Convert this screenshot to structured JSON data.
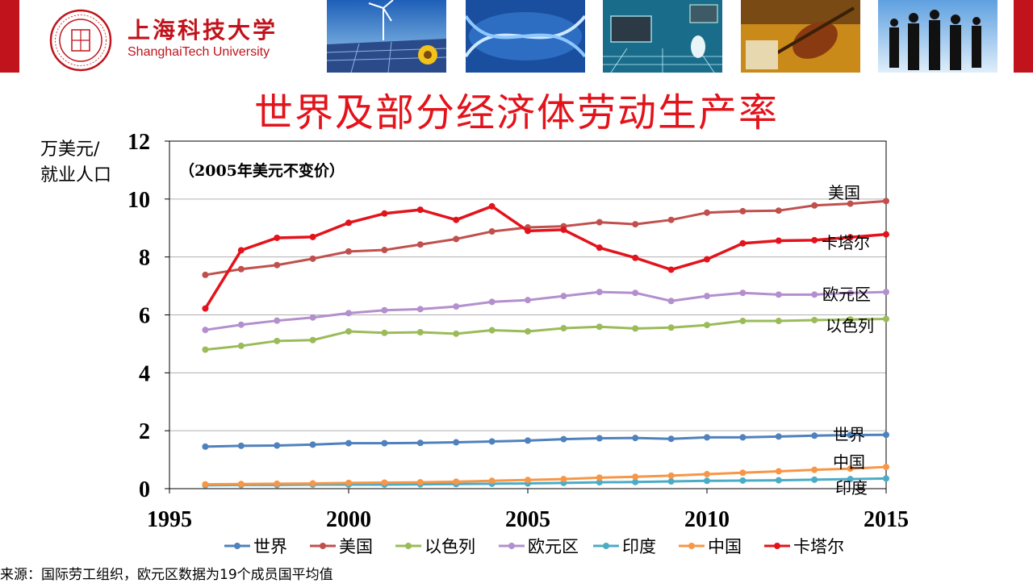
{
  "header": {
    "university_cn": "上海科技大学",
    "university_en": "ShanghaiTech University",
    "brand_color": "#c0131b",
    "photos": [
      "wind-solar-photo",
      "dna-photo",
      "tech-photo",
      "music-photo",
      "business-photo"
    ]
  },
  "title": "世界及部分经济体劳动生产率",
  "source": "来源：国际劳工组织，欧元区数据为19个成员国平均值",
  "chart_data": {
    "type": "line",
    "ylabel_line1": "万美元/",
    "ylabel_line2": "就业人口",
    "note": "（2005年美元不变价）",
    "x": [
      1996,
      1997,
      1998,
      1999,
      2000,
      2001,
      2002,
      2003,
      2004,
      2005,
      2006,
      2007,
      2008,
      2009,
      2010,
      2011,
      2012,
      2013,
      2014,
      2015
    ],
    "xlim": [
      1995,
      2015
    ],
    "xticks": [
      1995,
      2000,
      2005,
      2010,
      2015
    ],
    "ylim": [
      0,
      12
    ],
    "yticks": [
      0,
      2,
      4,
      6,
      8,
      10,
      12
    ],
    "grid": "horizontal",
    "legend_position": "bottom",
    "series": [
      {
        "name": "世界",
        "color": "#4f81bd",
        "end_label": "世界",
        "values": [
          1.45,
          1.48,
          1.49,
          1.52,
          1.57,
          1.57,
          1.58,
          1.6,
          1.63,
          1.66,
          1.71,
          1.74,
          1.75,
          1.72,
          1.77,
          1.77,
          1.8,
          1.83,
          1.85,
          1.86
        ]
      },
      {
        "name": "美国",
        "color": "#c0504d",
        "end_label": "美国",
        "values": [
          7.38,
          7.58,
          7.72,
          7.94,
          8.19,
          8.24,
          8.43,
          8.62,
          8.88,
          9.02,
          9.06,
          9.2,
          9.13,
          9.28,
          9.53,
          9.58,
          9.6,
          9.78,
          9.84,
          9.93
        ]
      },
      {
        "name": "以色列",
        "color": "#9bbb59",
        "end_label": "以色列",
        "values": [
          4.8,
          4.93,
          5.1,
          5.13,
          5.43,
          5.38,
          5.4,
          5.35,
          5.47,
          5.43,
          5.54,
          5.59,
          5.53,
          5.56,
          5.65,
          5.79,
          5.79,
          5.82,
          5.84,
          5.86
        ]
      },
      {
        "name": "欧元区",
        "color": "#b48fcd",
        "end_label": "欧元区",
        "values": [
          5.48,
          5.66,
          5.8,
          5.91,
          6.06,
          6.16,
          6.2,
          6.29,
          6.45,
          6.51,
          6.65,
          6.79,
          6.76,
          6.48,
          6.65,
          6.76,
          6.7,
          6.7,
          6.76,
          6.79
        ]
      },
      {
        "name": "印度",
        "color": "#4bacc6",
        "end_label": "印度",
        "values": [
          0.12,
          0.13,
          0.13,
          0.14,
          0.14,
          0.14,
          0.15,
          0.16,
          0.17,
          0.18,
          0.2,
          0.22,
          0.23,
          0.25,
          0.27,
          0.28,
          0.29,
          0.31,
          0.33,
          0.35
        ]
      },
      {
        "name": "中国",
        "color": "#f79646",
        "end_label": "中国",
        "values": [
          0.15,
          0.16,
          0.17,
          0.18,
          0.2,
          0.21,
          0.22,
          0.24,
          0.27,
          0.3,
          0.33,
          0.38,
          0.41,
          0.45,
          0.5,
          0.55,
          0.6,
          0.65,
          0.69,
          0.75
        ]
      },
      {
        "name": "卡塔尔",
        "color": "#e3131b",
        "end_label": "卡塔尔",
        "values": [
          6.22,
          8.23,
          8.66,
          8.69,
          9.18,
          9.5,
          9.63,
          9.28,
          9.75,
          8.9,
          8.94,
          8.32,
          7.97,
          7.56,
          7.92,
          8.47,
          8.56,
          8.58,
          8.68,
          8.78
        ]
      }
    ]
  }
}
